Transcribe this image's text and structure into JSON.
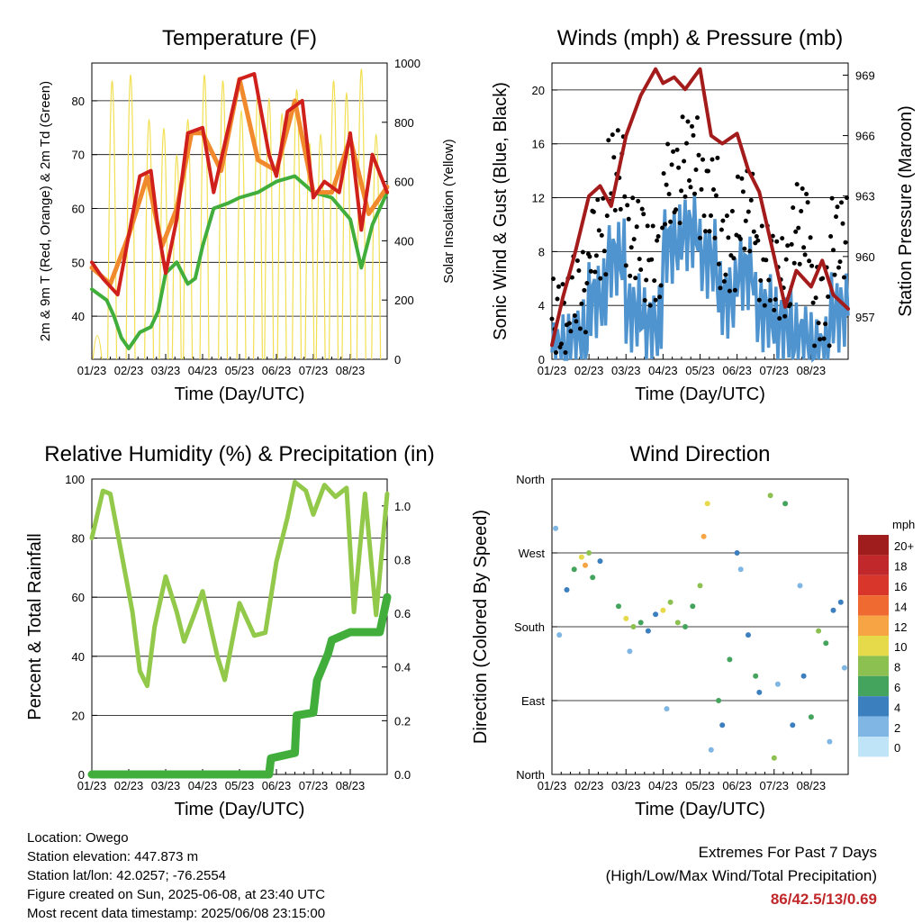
{
  "chart_data": [
    {
      "type": "line",
      "title": "Temperature (F)",
      "xlabel": "Time (Day/UTC)",
      "ylabel": "2m & 9m T (Red, Orange) & 2m Td (Green)",
      "y2label": "Solar Insolation (Yellow)",
      "x_ticks": [
        "01/23",
        "02/23",
        "03/23",
        "04/23",
        "05/23",
        "06/23",
        "07/23",
        "08/23"
      ],
      "ylim": [
        32,
        87
      ],
      "y_ticks": [
        40,
        50,
        60,
        70,
        80
      ],
      "y2lim": [
        0,
        1000
      ],
      "y2_ticks": [
        0,
        200,
        400,
        600,
        800,
        1000
      ],
      "grid": true,
      "series": [
        {
          "color": "#d0201c",
          "x": [
            0,
            0.3,
            0.7,
            1,
            1.3,
            1.6,
            1.8,
            2,
            2.3,
            2.6,
            3,
            3.3,
            3.6,
            4,
            4.4,
            4.8,
            5,
            5.3,
            5.7,
            6,
            6.3,
            6.7,
            7,
            7.3,
            7.6,
            8
          ],
          "values": [
            50,
            47,
            44,
            55,
            66,
            67,
            56,
            48,
            58,
            74,
            75,
            63,
            72,
            84,
            85,
            70,
            66,
            78,
            80,
            62,
            65,
            63,
            74,
            56,
            70,
            63
          ]
        },
        {
          "color": "#f08a2c",
          "x": [
            0,
            0.5,
            1,
            1.5,
            1.9,
            2.3,
            2.7,
            3,
            3.5,
            4,
            4.5,
            5,
            5.5,
            6,
            6.5,
            7,
            7.5,
            8
          ],
          "values": [
            49,
            46,
            55,
            66,
            53,
            60,
            74,
            74,
            67,
            84,
            69,
            67,
            80,
            63,
            63,
            73,
            59,
            64
          ]
        },
        {
          "color": "#41ae3c",
          "x": [
            0,
            0.4,
            0.6,
            0.8,
            1,
            1.3,
            1.6,
            1.8,
            2,
            2.3,
            2.6,
            2.8,
            3,
            3.3,
            3.7,
            4,
            4.5,
            5,
            5.5,
            6,
            6.5,
            7,
            7.3,
            7.6,
            8
          ],
          "values": [
            45,
            43,
            40,
            36,
            34,
            37,
            38,
            41,
            48,
            50,
            46,
            47,
            53,
            60,
            61,
            62,
            63,
            65,
            66,
            63,
            62,
            58,
            49,
            57,
            63
          ]
        },
        {
          "color": "#f2df52",
          "type": "spikes",
          "x": [
            0.15,
            0.55,
            1.05,
            1.55,
            1.95,
            2.3,
            2.6,
            3.05,
            3.55,
            4.05,
            4.5,
            4.8,
            5.15,
            5.55,
            5.9,
            6.2,
            6.55,
            6.9,
            7.3,
            7.7
          ],
          "values": [
            80,
            940,
            960,
            810,
            780,
            690,
            810,
            960,
            940,
            840,
            920,
            880,
            830,
            910,
            730,
            760,
            940,
            900,
            980,
            760
          ]
        }
      ]
    },
    {
      "type": "scatter",
      "title": "Winds (mph) & Pressure (mb)",
      "xlabel": "Time (Day/UTC)",
      "ylabel": "Sonic Wind & Gust (Blue, Black)",
      "y2label": "Station Pressure (Maroon)",
      "x_ticks": [
        "01/23",
        "02/23",
        "03/23",
        "04/23",
        "05/23",
        "06/23",
        "07/23",
        "08/23"
      ],
      "ylim": [
        0,
        22
      ],
      "y_ticks": [
        0,
        4,
        8,
        12,
        16,
        20
      ],
      "y2lim": [
        954.9,
        969.6
      ],
      "y2_ticks": [
        957,
        960,
        963,
        966,
        969
      ],
      "grid": true,
      "series": [
        {
          "color": "#4f94cf",
          "x": [
            0,
            0.5,
            1,
            1.5,
            2,
            2.5,
            3,
            3.5,
            4,
            4.5,
            5,
            5.5,
            6,
            6.5,
            7,
            7.5,
            8
          ],
          "values": [
            2,
            3,
            6,
            9,
            5,
            4,
            10,
            11,
            9,
            6,
            8,
            5,
            4,
            3,
            2,
            5,
            6
          ]
        },
        {
          "color": "#000000",
          "x": [
            0,
            0.5,
            1,
            1.5,
            2,
            2.5,
            3,
            3.5,
            4,
            4.5,
            5,
            5.5,
            6,
            6.5,
            7,
            7.5,
            8
          ],
          "values": [
            4,
            6,
            10,
            15,
            10,
            8,
            14,
            16,
            13,
            9,
            12,
            8,
            7,
            11,
            5,
            10,
            12
          ]
        },
        {
          "color": "#a31b1b",
          "x": [
            0,
            0.3,
            0.6,
            1,
            1.3,
            1.6,
            2,
            2.4,
            2.8,
            3,
            3.3,
            3.6,
            4,
            4.3,
            4.6,
            5,
            5.3,
            5.6,
            6,
            6.3,
            6.6,
            7,
            7.3,
            7.6,
            8
          ],
          "values": [
            955.6,
            958,
            960,
            963,
            963.5,
            962.5,
            966,
            968,
            969.3,
            968.6,
            968.9,
            968.3,
            969.3,
            966,
            965.6,
            966.1,
            964.3,
            963.2,
            960,
            957.5,
            959.3,
            958.5,
            959.8,
            958.1,
            957.4
          ]
        }
      ]
    },
    {
      "type": "line",
      "title": "Relative Humidity (%) & Precipitation (in)",
      "xlabel": "Time (Day/UTC)",
      "ylabel": "Percent & Total Rainfall",
      "x_ticks": [
        "01/23",
        "02/23",
        "03/23",
        "04/23",
        "05/23",
        "06/23",
        "07/23",
        "08/23"
      ],
      "ylim": [
        0,
        100
      ],
      "y_ticks": [
        0,
        20,
        40,
        60,
        80,
        100
      ],
      "y2lim": [
        0,
        1.1
      ],
      "y2_ticks": [
        "0.0",
        "0.2",
        "0.4",
        "0.6",
        "0.8",
        "1.0"
      ],
      "grid": true,
      "series": [
        {
          "color": "#93c94a",
          "x": [
            0,
            0.3,
            0.5,
            0.8,
            1.1,
            1.3,
            1.5,
            1.7,
            2,
            2.3,
            2.5,
            2.8,
            3,
            3.4,
            3.6,
            4,
            4.4,
            4.7,
            5,
            5.3,
            5.5,
            5.8,
            6,
            6.3,
            6.6,
            6.9,
            7.1,
            7.4,
            7.7,
            8
          ],
          "values": [
            80,
            96,
            95,
            75,
            55,
            35,
            30,
            50,
            67,
            55,
            45,
            55,
            62,
            40,
            32,
            58,
            47,
            48,
            72,
            87,
            99,
            96,
            88,
            98,
            94,
            97,
            55,
            95,
            54,
            95
          ]
        },
        {
          "color": "#41ae3c",
          "x": [
            0,
            1,
            2,
            3,
            4,
            4.8,
            4.85,
            5.5,
            5.55,
            6,
            6.1,
            6.4,
            6.5,
            7,
            7.5,
            7.8,
            8
          ],
          "values": [
            0,
            0,
            0,
            0,
            0,
            0,
            0.06,
            0.08,
            0.22,
            0.23,
            0.35,
            0.45,
            0.5,
            0.53,
            0.53,
            0.53,
            0.66
          ]
        }
      ]
    },
    {
      "type": "scatter",
      "title": "Wind Direction",
      "xlabel": "Time (Day/UTC)",
      "ylabel": "Direction (Colored By Speed)",
      "x_ticks": [
        "01/23",
        "02/23",
        "03/23",
        "04/23",
        "05/23",
        "06/23",
        "07/23",
        "08/23"
      ],
      "y_ticks": [
        "North",
        "East",
        "South",
        "West",
        "North"
      ],
      "grid": true,
      "legend": {
        "title": "mph",
        "position": "right",
        "labels": [
          "20+",
          "18",
          "16",
          "14",
          "12",
          "10",
          "8",
          "6",
          "4",
          "2",
          "0"
        ],
        "colors": [
          "#a01d1d",
          "#c0282b",
          "#d8362b",
          "#ee6a30",
          "#f7a445",
          "#e6d94a",
          "#8cc152",
          "#44a35c",
          "#3c7fbf",
          "#7fb6e3",
          "#bfe4f7"
        ]
      },
      "points": [
        [
          0.4,
          225,
          3
        ],
        [
          0.6,
          250,
          6
        ],
        [
          0.8,
          265,
          9
        ],
        [
          0.9,
          255,
          11
        ],
        [
          1.0,
          270,
          8
        ],
        [
          1.1,
          240,
          5
        ],
        [
          1.3,
          260,
          3
        ],
        [
          1.8,
          205,
          5
        ],
        [
          2.0,
          190,
          10
        ],
        [
          2.2,
          180,
          7
        ],
        [
          2.4,
          185,
          6
        ],
        [
          2.6,
          175,
          3
        ],
        [
          2.8,
          195,
          4
        ],
        [
          3.0,
          200,
          10
        ],
        [
          3.2,
          210,
          8
        ],
        [
          3.4,
          185,
          7
        ],
        [
          3.6,
          180,
          5
        ],
        [
          3.8,
          205,
          6
        ],
        [
          4.0,
          230,
          8
        ],
        [
          4.1,
          290,
          11
        ],
        [
          4.2,
          330,
          9
        ],
        [
          4.5,
          90,
          6
        ],
        [
          4.6,
          60,
          4
        ],
        [
          4.8,
          140,
          5
        ],
        [
          5.0,
          270,
          3
        ],
        [
          5.3,
          170,
          4
        ],
        [
          5.5,
          120,
          6
        ],
        [
          5.6,
          100,
          4
        ],
        [
          5.9,
          340,
          7
        ],
        [
          6.0,
          20,
          8
        ],
        [
          6.3,
          330,
          6
        ],
        [
          6.5,
          60,
          3
        ],
        [
          6.8,
          120,
          4
        ],
        [
          7.0,
          70,
          5
        ],
        [
          7.2,
          175,
          8
        ],
        [
          7.4,
          160,
          6
        ],
        [
          7.6,
          200,
          4
        ],
        [
          7.8,
          210,
          3
        ],
        [
          0.1,
          300,
          2
        ],
        [
          0.2,
          170,
          1
        ],
        [
          2.1,
          150,
          2
        ],
        [
          3.1,
          80,
          1
        ],
        [
          4.3,
          30,
          2
        ],
        [
          5.1,
          250,
          2
        ],
        [
          6.1,
          110,
          1
        ],
        [
          6.7,
          230,
          2
        ],
        [
          7.5,
          40,
          1
        ],
        [
          7.9,
          130,
          2
        ]
      ]
    }
  ],
  "info": {
    "location": "Location: Owego",
    "elevation": "Station elevation: 447.873 m",
    "latlon": "Station lat/lon: 42.0257; -76.2554",
    "created": "Figure created on Sun, 2025-06-08, at 23:40 UTC",
    "recent": "Most recent data timestamp: 2025/06/08 23:15:00"
  },
  "extremes": {
    "line1": "Extremes For Past 7 Days",
    "line2": "(High/Low/Max Wind/Total Precipitation)",
    "values": "86/42.5/13/0.69"
  }
}
